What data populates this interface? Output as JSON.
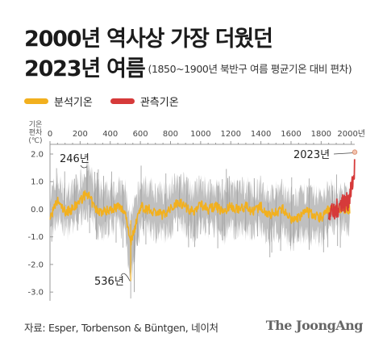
{
  "header": {
    "title_line1": "2000년 역사상 가장 더웠던",
    "title_line2": "2023년 여름",
    "subtitle": "(1850~1900년 북반구 여름 평균기온 대비 편차)"
  },
  "footer": {
    "source": "자료: Esper, Torbenson & Büntgen, 네이처",
    "brand": "The JoongAng"
  },
  "chart_data": {
    "type": "line",
    "ylabel": "기온 편차 (℃)",
    "ylabel_lines": [
      "기온",
      "편차",
      "(℃)"
    ],
    "xlim": [
      0,
      2023
    ],
    "ylim": [
      -3.2,
      2.0
    ],
    "x_ticks": [
      0,
      200,
      400,
      600,
      800,
      1000,
      1200,
      1400,
      1600,
      1800,
      2000
    ],
    "x_tick_labels": [
      "0",
      "200",
      "400",
      "600",
      "800",
      "1000",
      "1200",
      "1400",
      "1600",
      "1800",
      "2000년"
    ],
    "y_ticks": [
      2.0,
      1.0,
      0.0,
      -1.0,
      -2.0,
      -3.0
    ],
    "y_tick_labels": [
      "2.0",
      "1.0",
      "0.0",
      "-1.0",
      "-2.0",
      "-3.0"
    ],
    "grid": false,
    "legend_position": "top-left",
    "series": [
      {
        "name": "분석기온",
        "color": "#f2b01e",
        "x": [
          1,
          50,
          100,
          150,
          200,
          246,
          300,
          350,
          400,
          450,
          500,
          536,
          600,
          650,
          700,
          750,
          800,
          850,
          900,
          950,
          1000,
          1050,
          1100,
          1150,
          1200,
          1250,
          1300,
          1350,
          1400,
          1450,
          1500,
          1550,
          1600,
          1650,
          1700,
          1750,
          1800,
          1850,
          1900
        ],
        "y": [
          -0.3,
          0.3,
          -0.1,
          0.0,
          0.3,
          0.6,
          0.0,
          -0.1,
          0.0,
          0.1,
          -0.1,
          -1.2,
          0.1,
          0.0,
          -0.1,
          -0.2,
          0.0,
          0.3,
          0.1,
          -0.1,
          0.2,
          0.0,
          0.1,
          -0.1,
          0.1,
          0.0,
          0.1,
          -0.1,
          0.1,
          -0.2,
          -0.1,
          0.0,
          -0.4,
          -0.3,
          -0.1,
          -0.2,
          -0.3,
          0.0,
          0.0
        ],
        "range_low": [
          -0.9,
          -0.3,
          -0.7,
          -0.7,
          -0.3,
          0.0,
          -0.6,
          -0.8,
          -0.6,
          -0.5,
          -0.8,
          -2.6,
          -0.6,
          -0.7,
          -0.8,
          -0.9,
          -0.7,
          -0.3,
          -0.6,
          -0.9,
          -0.5,
          -0.7,
          -0.6,
          -0.9,
          -0.7,
          -0.7,
          -0.7,
          -0.8,
          -0.6,
          -1.0,
          -0.8,
          -0.8,
          -1.3,
          -1.0,
          -0.8,
          -1.0,
          -1.0,
          -0.8,
          -0.6
        ],
        "range_high": [
          0.5,
          1.0,
          0.6,
          0.7,
          1.0,
          1.6,
          0.8,
          0.6,
          0.7,
          0.8,
          0.7,
          -0.4,
          0.9,
          0.8,
          0.6,
          0.6,
          0.8,
          1.0,
          0.9,
          0.6,
          0.9,
          0.7,
          0.8,
          0.6,
          0.8,
          0.7,
          0.8,
          0.6,
          0.8,
          0.5,
          0.6,
          0.7,
          0.4,
          0.4,
          0.6,
          0.5,
          0.5,
          0.7,
          0.6
        ]
      },
      {
        "name": "관측기온",
        "color": "#d63a3a",
        "x": [
          1850,
          1870,
          1890,
          1900,
          1920,
          1940,
          1960,
          1980,
          2000,
          2010,
          2020,
          2023
        ],
        "y": [
          -0.1,
          0.0,
          -0.2,
          0.0,
          0.1,
          0.3,
          0.2,
          0.3,
          0.7,
          1.0,
          1.3,
          2.07
        ]
      }
    ],
    "annotations": [
      {
        "label": "246년",
        "x": 246,
        "y": 1.6
      },
      {
        "label": "536년",
        "x": 536,
        "y": -2.6
      },
      {
        "label": "2023년",
        "x": 2023,
        "y": 2.07
      }
    ]
  }
}
